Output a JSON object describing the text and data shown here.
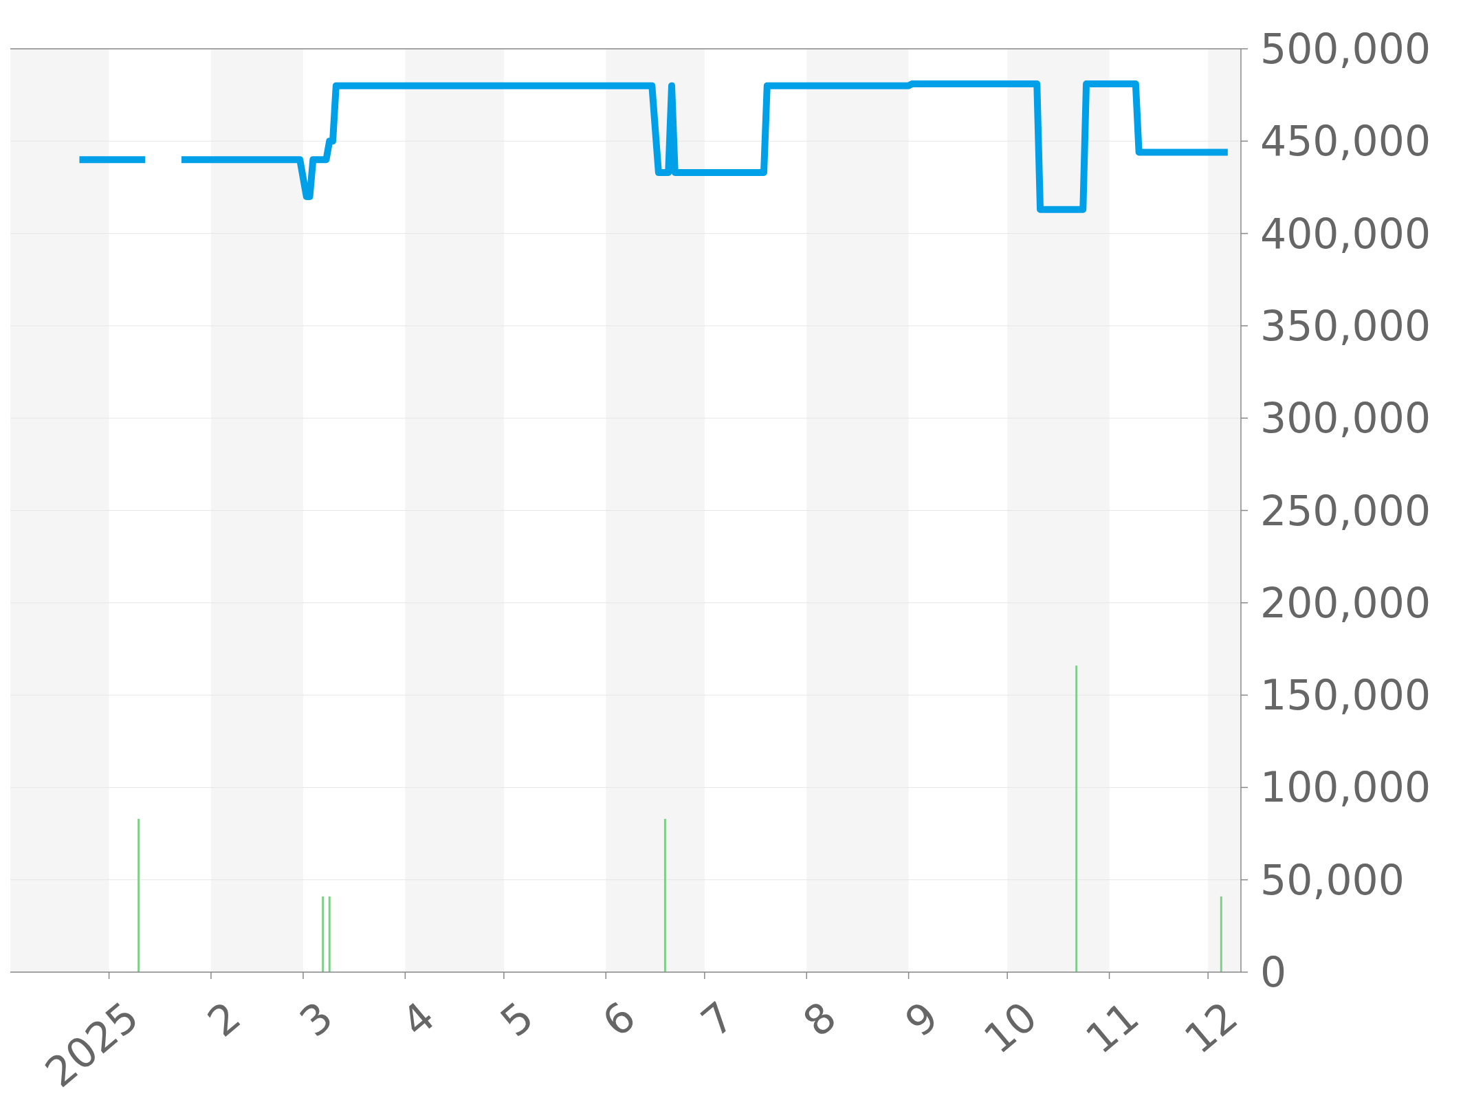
{
  "chart_data": {
    "type": "line",
    "xlim": [
      "2024-12-02",
      "2025-12-11"
    ],
    "xticks": [
      {
        "value": "2025-01-01",
        "label": "2025"
      },
      {
        "value": "2025-02-01",
        "label": "2"
      },
      {
        "value": "2025-03-01",
        "label": "3"
      },
      {
        "value": "2025-04-01",
        "label": "4"
      },
      {
        "value": "2025-05-01",
        "label": "5"
      },
      {
        "value": "2025-06-01",
        "label": "6"
      },
      {
        "value": "2025-07-01",
        "label": "7"
      },
      {
        "value": "2025-08-01",
        "label": "8"
      },
      {
        "value": "2025-09-01",
        "label": "9"
      },
      {
        "value": "2025-10-01",
        "label": "10"
      },
      {
        "value": "2025-11-01",
        "label": "11"
      },
      {
        "value": "2025-12-01",
        "label": "12"
      }
    ],
    "ylim": [
      0,
      500000
    ],
    "yticks": [
      {
        "value": 0,
        "label": "0"
      },
      {
        "value": 50000,
        "label": "50,000"
      },
      {
        "value": 100000,
        "label": "100,000"
      },
      {
        "value": 150000,
        "label": "150,000"
      },
      {
        "value": 200000,
        "label": "200,000"
      },
      {
        "value": 250000,
        "label": "250,000"
      },
      {
        "value": 300000,
        "label": "300,000"
      },
      {
        "value": 350000,
        "label": "350,000"
      },
      {
        "value": 400000,
        "label": "400,000"
      },
      {
        "value": 450000,
        "label": "450,000"
      },
      {
        "value": 500000,
        "label": "500,000"
      }
    ],
    "grid": "y",
    "marker": "none",
    "line_style": "solid",
    "bands": [
      {
        "axis": "x",
        "from": "2024-12-02",
        "to": "2025-01-01",
        "color": "#f5f5f5"
      },
      {
        "axis": "x",
        "from": "2025-02-01",
        "to": "2025-03-01",
        "color": "#f5f5f5"
      },
      {
        "axis": "x",
        "from": "2025-04-01",
        "to": "2025-05-01",
        "color": "#f5f5f5"
      },
      {
        "axis": "x",
        "from": "2025-06-01",
        "to": "2025-07-01",
        "color": "#f5f5f5"
      },
      {
        "axis": "x",
        "from": "2025-08-01",
        "to": "2025-09-01",
        "color": "#f5f5f5"
      },
      {
        "axis": "x",
        "from": "2025-10-01",
        "to": "2025-11-01",
        "color": "#f5f5f5"
      },
      {
        "axis": "x",
        "from": "2025-12-01",
        "to": "2025-12-11",
        "color": "#f5f5f5"
      }
    ],
    "series": [
      {
        "type": "bar",
        "color": "#7fcf8a",
        "x": [
          "2025-01-10",
          "2025-03-07",
          "2025-03-09",
          "2025-06-19",
          "2025-10-22",
          "2025-12-05"
        ],
        "values": [
          83000,
          41000,
          41000,
          83000,
          166000,
          41000
        ]
      },
      {
        "color": "#00a0e9",
        "x": [
          "2024-12-23",
          "2025-01-12",
          "2025-01-17",
          "2025-01-23",
          "2025-02-28",
          "2025-03-02",
          "2025-03-03",
          "2025-03-04",
          "2025-03-08",
          "2025-03-09",
          "2025-03-10",
          "2025-03-11",
          "2025-06-15",
          "2025-06-17",
          "2025-06-20",
          "2025-06-21",
          "2025-06-22",
          "2025-07-19",
          "2025-07-20",
          "2025-09-01",
          "2025-09-02",
          "2025-10-10",
          "2025-10-11",
          "2025-10-24",
          "2025-10-25",
          "2025-11-09",
          "2025-11-10",
          "2025-12-07"
        ],
        "values": [
          440000,
          440000,
          null,
          440000,
          440000,
          420000,
          420000,
          440000,
          440000,
          450000,
          450000,
          480000,
          480000,
          433000,
          433000,
          480000,
          433000,
          433000,
          480000,
          480000,
          481000,
          481000,
          413000,
          413000,
          481000,
          481000,
          444000,
          444000
        ]
      }
    ]
  }
}
